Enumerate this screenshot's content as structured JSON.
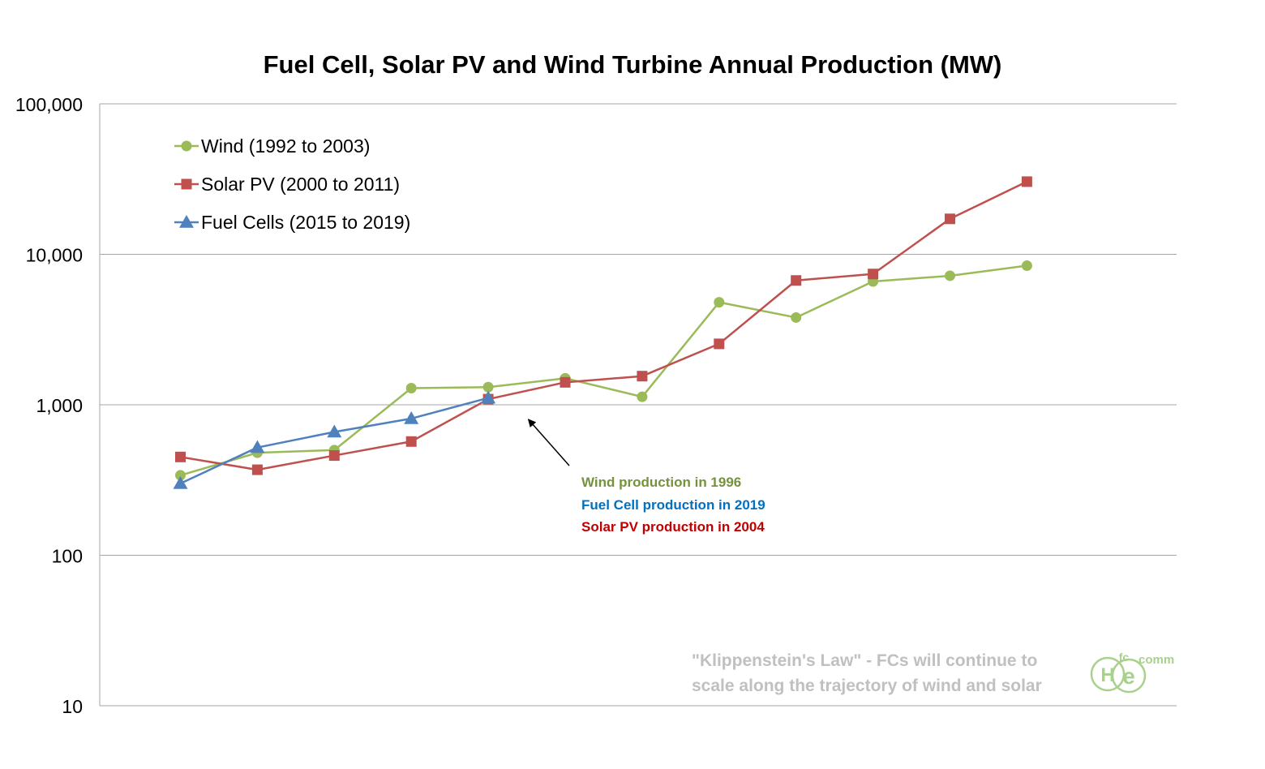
{
  "chart_data": {
    "type": "line",
    "title": "Fuel Cell, Solar PV and Wind Turbine Annual Production (MW)",
    "y_scale": "log",
    "ylim": [
      10,
      100000
    ],
    "y_ticks": [
      {
        "value": 100000,
        "label": "100,000"
      },
      {
        "value": 10000,
        "label": "10,000"
      },
      {
        "value": 1000,
        "label": "1,000"
      },
      {
        "value": 100,
        "label": "100"
      },
      {
        "value": 10,
        "label": "10"
      }
    ],
    "x_ticks": [
      1,
      2,
      3,
      4,
      5,
      6,
      7,
      8,
      9,
      10,
      11,
      12
    ],
    "grid": true,
    "legend_position": "top-left",
    "series": [
      {
        "name": "Wind (1992 to 2003)",
        "color": "#9BBB59",
        "marker": "circle",
        "values": [
          340,
          480,
          500,
          1290,
          1310,
          1500,
          1130,
          4800,
          3800,
          6600,
          7200,
          8400
        ]
      },
      {
        "name": "Solar PV (2000 to 2011)",
        "color": "#C0504D",
        "marker": "square",
        "values": [
          450,
          370,
          460,
          570,
          1090,
          1410,
          1550,
          2540,
          6700,
          7400,
          17200,
          30400
        ]
      },
      {
        "name": "Fuel Cells (2015 to 2019)",
        "color": "#4F81BD",
        "marker": "triangle",
        "values": [
          300,
          520,
          660,
          810,
          1110
        ]
      }
    ],
    "annotations": [
      {
        "text": "Wind production in 1996",
        "color": "#76923C"
      },
      {
        "text": "Fuel Cell production in 2019",
        "color": "#0070C0"
      },
      {
        "text": "Solar PV production in 2004",
        "color": "#C00000"
      }
    ],
    "arrow_target": {
      "x": 5.5,
      "y": 1000
    },
    "footnote": {
      "line1": "\"Klippenstein's Law\" - FCs will continue to",
      "line2": "scale along the trajectory of wind and solar",
      "color": "#C0C0C0"
    },
    "logo": {
      "h": "H",
      "fc": "fc",
      "e": "e",
      "comm": "comm",
      "color": "#A9D18E"
    }
  }
}
